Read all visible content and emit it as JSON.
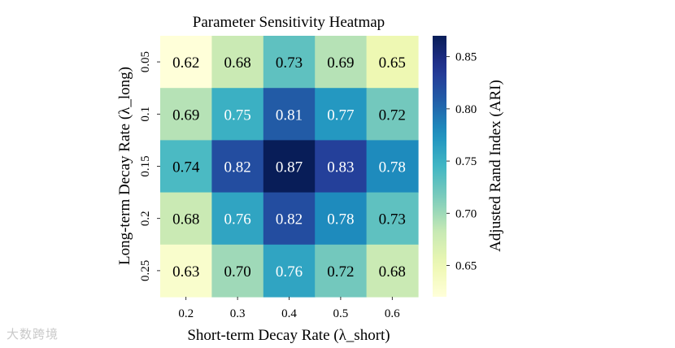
{
  "chart_data": {
    "type": "heatmap",
    "title": "Parameter Sensitivity Heatmap",
    "xlabel": "Short-term Decay Rate (λ_short)",
    "ylabel": "Long-term Decay Rate (λ_long)",
    "x_categories": [
      "0.2",
      "0.3",
      "0.4",
      "0.5",
      "0.6"
    ],
    "y_categories": [
      "0.05",
      "0.1",
      "0.15",
      "0.2",
      "0.25"
    ],
    "values": [
      [
        0.62,
        0.68,
        0.73,
        0.69,
        0.65
      ],
      [
        0.69,
        0.75,
        0.81,
        0.77,
        0.72
      ],
      [
        0.74,
        0.82,
        0.87,
        0.83,
        0.78
      ],
      [
        0.68,
        0.76,
        0.82,
        0.78,
        0.73
      ],
      [
        0.63,
        0.7,
        0.76,
        0.72,
        0.68
      ]
    ],
    "colorbar": {
      "label": "Adjusted Rand Index (ARI)",
      "ticks": [
        "0.65",
        "0.70",
        "0.75",
        "0.80",
        "0.85"
      ],
      "range": [
        0.62,
        0.87
      ],
      "colormap": "YlGnBu"
    }
  },
  "watermark": "大数跨境"
}
